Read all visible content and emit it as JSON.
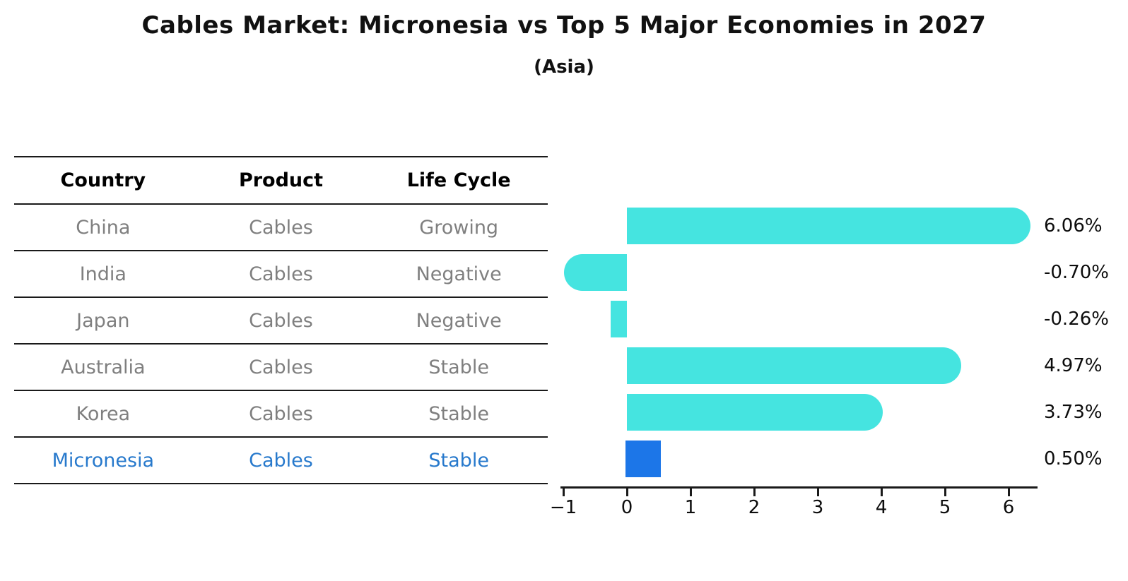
{
  "figure": {
    "background": "#ffffff"
  },
  "table": {
    "headers": [
      "Country",
      "Product",
      "Life Cycle"
    ],
    "rows": [
      {
        "country": "China",
        "product": "Cables",
        "life_cycle": "Growing",
        "highlight": false
      },
      {
        "country": "India",
        "product": "Cables",
        "life_cycle": "Negative",
        "highlight": false
      },
      {
        "country": "Japan",
        "product": "Cables",
        "life_cycle": "Negative",
        "highlight": false
      },
      {
        "country": "Australia",
        "product": "Cables",
        "life_cycle": "Stable",
        "highlight": false
      },
      {
        "country": "Korea",
        "product": "Cables",
        "life_cycle": "Stable",
        "highlight": false
      },
      {
        "country": "Micronesia",
        "product": "Cables",
        "life_cycle": "Stable",
        "highlight": true
      }
    ],
    "text_color": "#7f7f7f",
    "header_color": "#000000",
    "highlight_text_color": "#2779CC"
  },
  "chart_data": {
    "type": "bar",
    "orientation": "horizontal",
    "title": "Cables Market: Micronesia vs Top 5 Major Economies in 2027",
    "subtitle": "(Asia)",
    "categories": [
      "China",
      "India",
      "Japan",
      "Australia",
      "Korea",
      "Micronesia"
    ],
    "values": [
      6.06,
      -0.7,
      -0.26,
      4.97,
      3.73,
      0.5
    ],
    "value_labels": [
      "6.06%",
      "-0.70%",
      "-0.26%",
      "4.97%",
      "3.73%",
      "0.50%"
    ],
    "xlabel": "",
    "ylabel": "",
    "xlim": [
      -1.05,
      6.45
    ],
    "xticks": [
      -1,
      0,
      1,
      2,
      3,
      4,
      5,
      6
    ],
    "xtick_labels": [
      "−1",
      "0",
      "1",
      "2",
      "3",
      "4",
      "5",
      "6"
    ],
    "grid": false,
    "legend": false,
    "bar_color": "#45E4E0",
    "highlight_bar_color": "#1C76E8",
    "highlight_index": 5
  }
}
